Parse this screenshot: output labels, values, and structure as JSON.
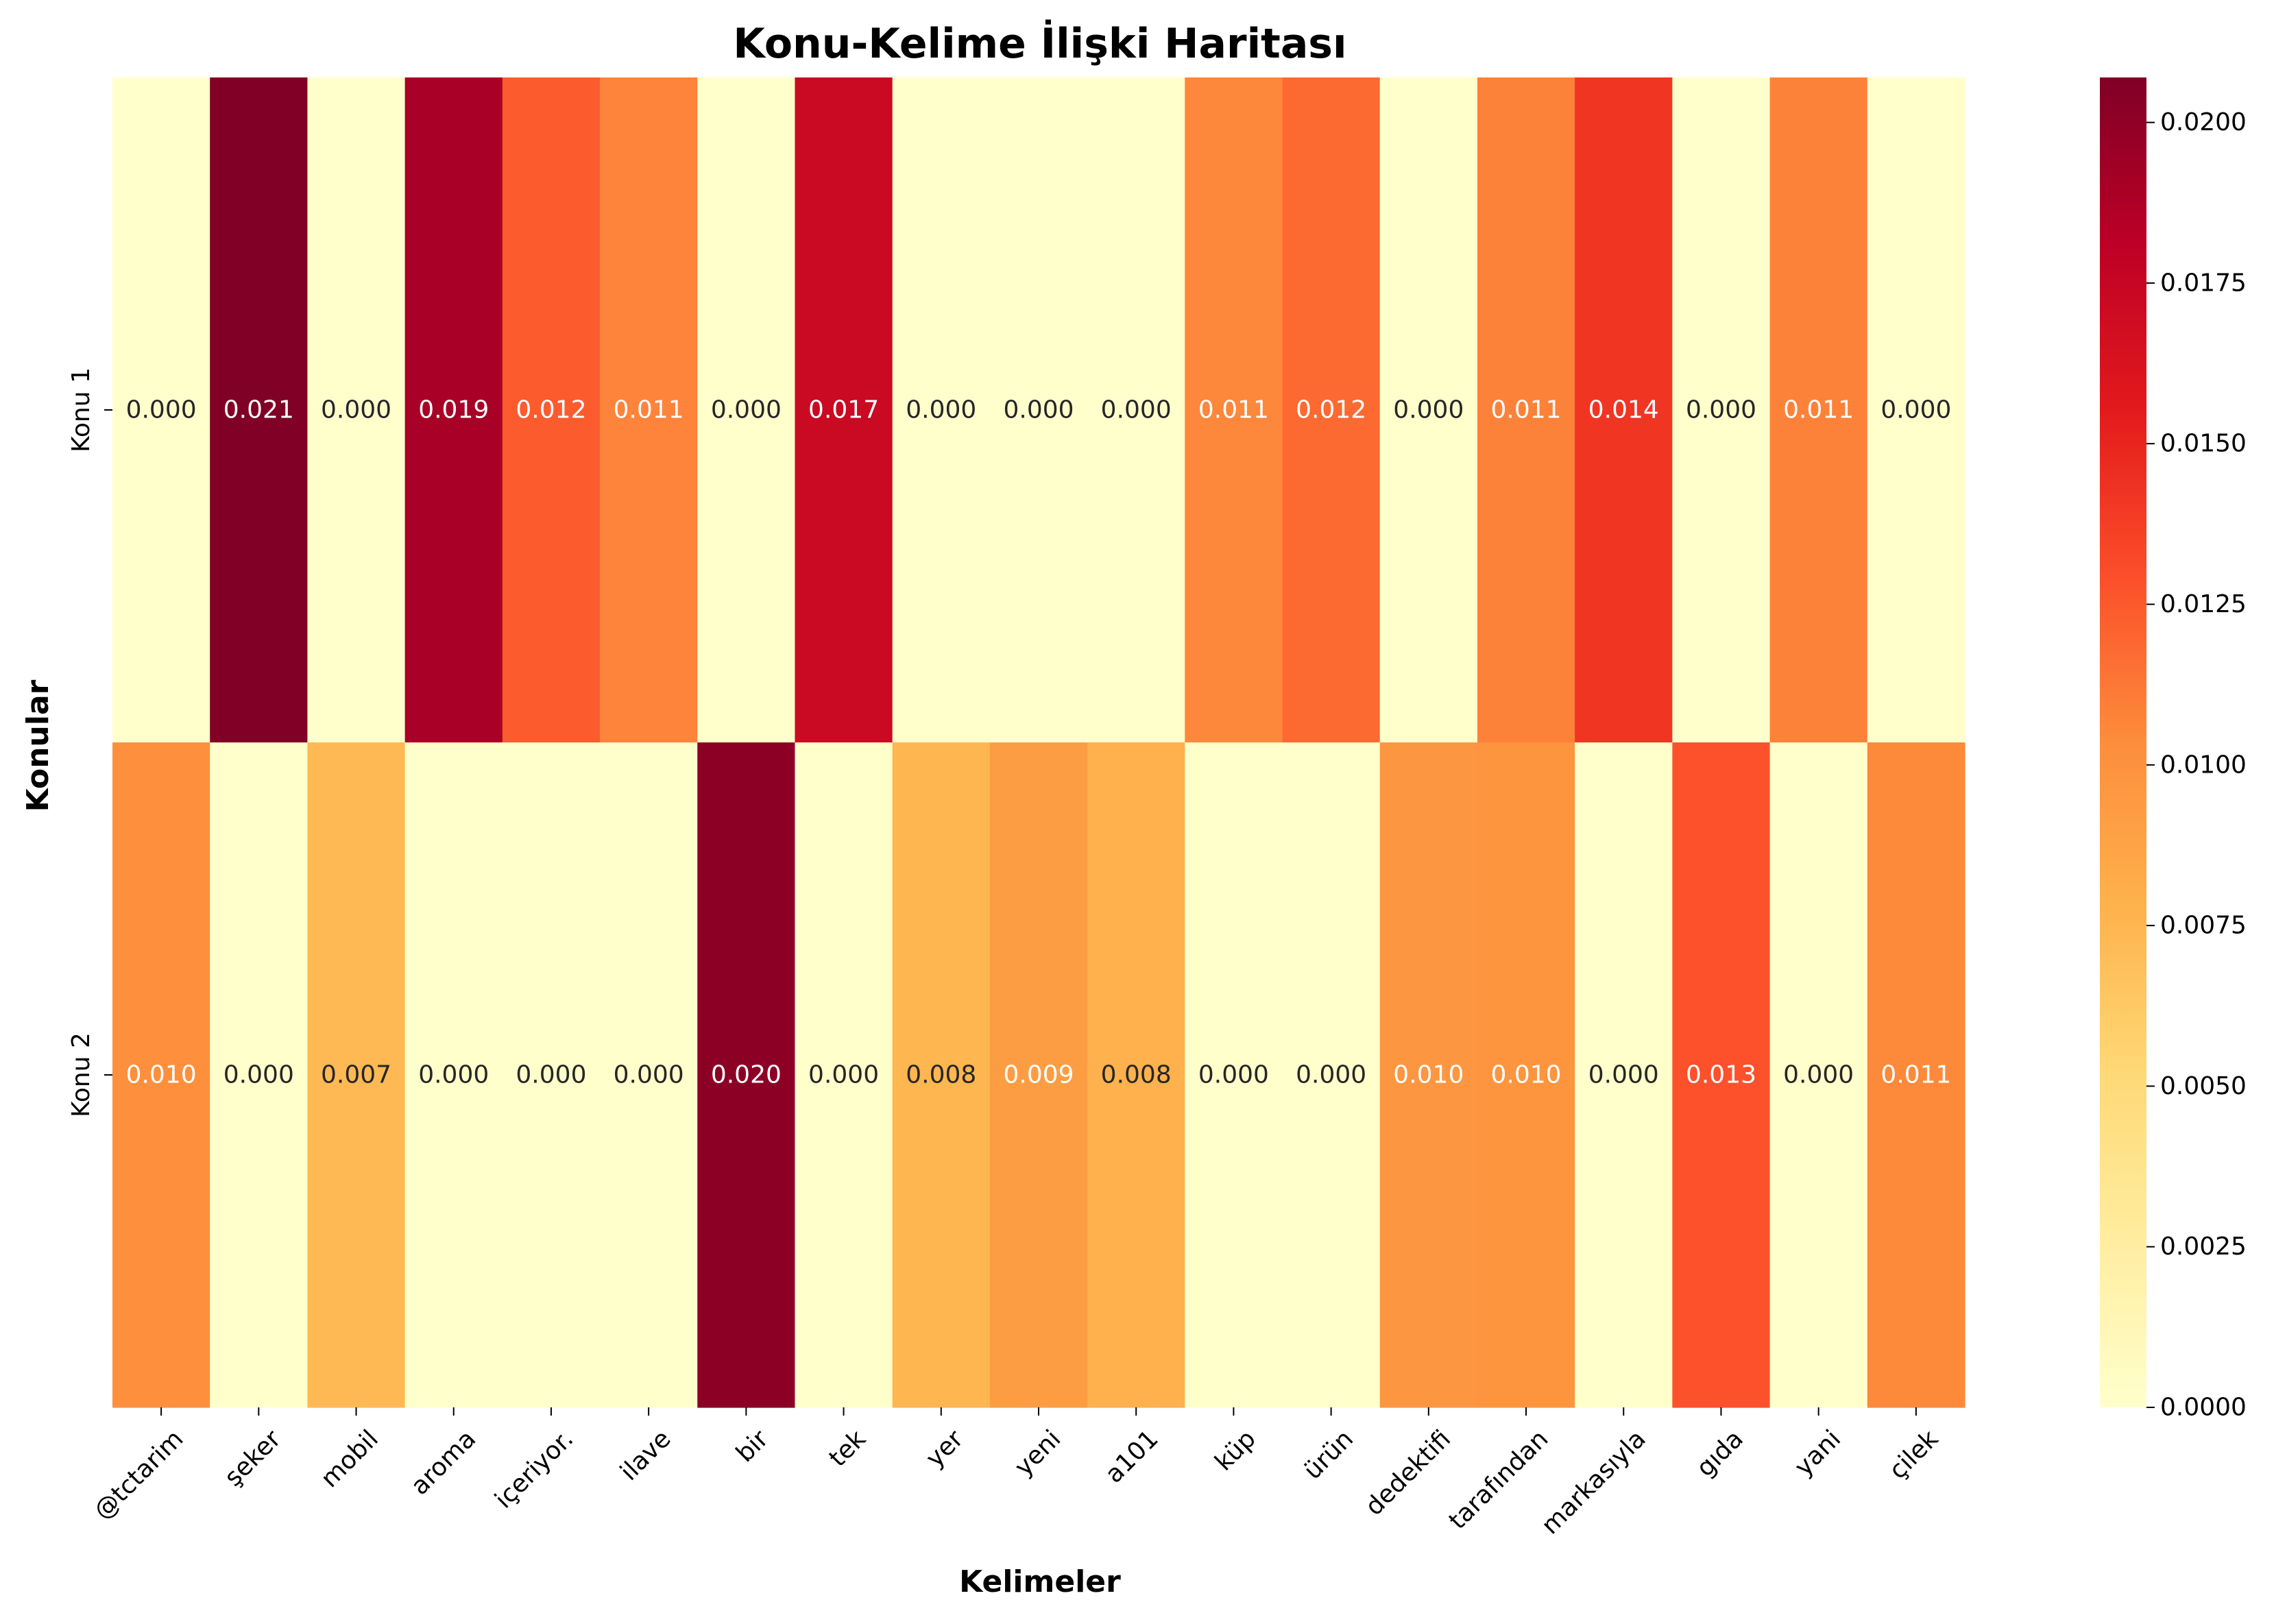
{
  "chart_data": {
    "type": "heatmap",
    "title": "Konu-Kelime İlişki Haritası",
    "xlabel": "Kelimeler",
    "ylabel": "Konular",
    "rows": [
      "Konu 1",
      "Konu 2"
    ],
    "columns": [
      "@tctarim",
      "şeker",
      "mobil",
      "aroma",
      "içeriyor.",
      "ilave",
      "bir",
      "tek",
      "yer",
      "yeni",
      "a101",
      "küp",
      "ürün",
      "dedektifi",
      "tarafından",
      "markasıyla",
      "gıda",
      "yani",
      "çilek"
    ],
    "values": [
      [
        0.0,
        0.0207,
        0.0,
        0.019,
        0.0124,
        0.0107,
        0.0,
        0.0172,
        0.0,
        0.0,
        0.0,
        0.0106,
        0.0118,
        0.0,
        0.0108,
        0.0142,
        0.0,
        0.0108,
        0.0
      ],
      [
        0.0102,
        0.0,
        0.0073,
        0.0,
        0.0,
        0.0,
        0.0202,
        0.0,
        0.0075,
        0.0092,
        0.0078,
        0.0,
        0.0,
        0.0097,
        0.0098,
        0.0,
        0.0128,
        0.0,
        0.0105
      ]
    ],
    "cell_labels": [
      [
        "0.000",
        "0.021",
        "0.000",
        "0.019",
        "0.012",
        "0.011",
        "0.000",
        "0.017",
        "0.000",
        "0.000",
        "0.000",
        "0.011",
        "0.012",
        "0.000",
        "0.011",
        "0.014",
        "0.000",
        "0.011",
        "0.000"
      ],
      [
        "0.010",
        "0.000",
        "0.007",
        "0.000",
        "0.000",
        "0.000",
        "0.020",
        "0.000",
        "0.008",
        "0.009",
        "0.008",
        "0.000",
        "0.000",
        "0.010",
        "0.010",
        "0.000",
        "0.013",
        "0.000",
        "0.011"
      ]
    ],
    "colormap": "YlOrRd",
    "colorbar": {
      "range": [
        0,
        0.0207
      ],
      "ticks": [
        0.0,
        0.0025,
        0.005,
        0.0075,
        0.01,
        0.0125,
        0.015,
        0.0175,
        0.02
      ],
      "tick_labels": [
        "0.0000",
        "0.0025",
        "0.0050",
        "0.0075",
        "0.0100",
        "0.0125",
        "0.0150",
        "0.0175",
        "0.0200"
      ]
    },
    "grid": false,
    "legend": "colorbar-right"
  }
}
